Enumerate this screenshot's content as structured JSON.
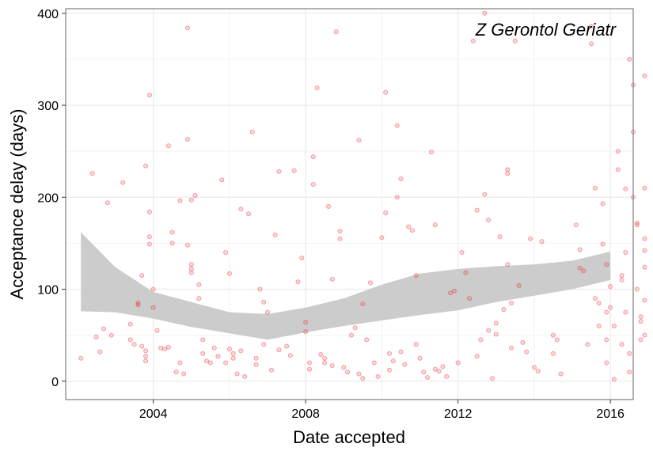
{
  "chart_data": {
    "type": "scatter",
    "annotation": "Z Gerontol Geriatr",
    "xlabel": "Date accepted",
    "ylabel": "Acceptance delay (days)",
    "xlim": [
      2001.7,
      2016.6
    ],
    "ylim": [
      -20,
      405
    ],
    "x_ticks": [
      2004,
      2008,
      2012,
      2016
    ],
    "y_ticks": [
      0,
      100,
      200,
      300,
      400
    ],
    "grid": true,
    "point_color": "#e8242a",
    "band_color": "#cccccc",
    "points": [
      [
        2002.1,
        25
      ],
      [
        2002.4,
        226
      ],
      [
        2002.5,
        48
      ],
      [
        2002.6,
        32
      ],
      [
        2002.7,
        57
      ],
      [
        2002.8,
        194
      ],
      [
        2002.9,
        50
      ],
      [
        2003.2,
        216
      ],
      [
        2003.4,
        45
      ],
      [
        2003.4,
        62
      ],
      [
        2003.5,
        40
      ],
      [
        2003.6,
        85
      ],
      [
        2003.6,
        83
      ],
      [
        2003.7,
        115
      ],
      [
        2003.7,
        38
      ],
      [
        2003.8,
        234
      ],
      [
        2003.8,
        33
      ],
      [
        2003.8,
        27
      ],
      [
        2003.8,
        22
      ],
      [
        2003.9,
        184
      ],
      [
        2003.9,
        157
      ],
      [
        2003.9,
        149
      ],
      [
        2003.9,
        311
      ],
      [
        2004.0,
        100
      ],
      [
        2004.0,
        80
      ],
      [
        2004.1,
        55
      ],
      [
        2004.2,
        36
      ],
      [
        2004.3,
        35
      ],
      [
        2004.4,
        37
      ],
      [
        2004.4,
        256
      ],
      [
        2004.5,
        162
      ],
      [
        2004.5,
        150
      ],
      [
        2004.6,
        10
      ],
      [
        2004.7,
        196
      ],
      [
        2004.7,
        20
      ],
      [
        2004.8,
        8
      ],
      [
        2004.9,
        384
      ],
      [
        2004.9,
        263
      ],
      [
        2004.9,
        148
      ],
      [
        2005.0,
        197
      ],
      [
        2005.0,
        127
      ],
      [
        2005.0,
        122
      ],
      [
        2005.0,
        118
      ],
      [
        2005.1,
        202
      ],
      [
        2005.2,
        105
      ],
      [
        2005.2,
        90
      ],
      [
        2005.3,
        45
      ],
      [
        2005.3,
        30
      ],
      [
        2005.4,
        22
      ],
      [
        2005.5,
        20
      ],
      [
        2005.6,
        36
      ],
      [
        2005.7,
        27
      ],
      [
        2005.8,
        219
      ],
      [
        2005.9,
        20
      ],
      [
        2005.9,
        140
      ],
      [
        2006.0,
        117
      ],
      [
        2006.0,
        35
      ],
      [
        2006.1,
        30
      ],
      [
        2006.1,
        25
      ],
      [
        2006.2,
        8
      ],
      [
        2006.3,
        187
      ],
      [
        2006.3,
        33
      ],
      [
        2006.4,
        5
      ],
      [
        2006.5,
        182
      ],
      [
        2006.6,
        271
      ],
      [
        2006.7,
        25
      ],
      [
        2006.7,
        18
      ],
      [
        2006.8,
        100
      ],
      [
        2006.9,
        86
      ],
      [
        2006.9,
        40
      ],
      [
        2007.0,
        75
      ],
      [
        2007.1,
        12
      ],
      [
        2007.2,
        159
      ],
      [
        2007.3,
        228
      ],
      [
        2007.3,
        34
      ],
      [
        2007.5,
        38
      ],
      [
        2007.6,
        28
      ],
      [
        2007.7,
        229
      ],
      [
        2007.8,
        108
      ],
      [
        2007.9,
        134
      ],
      [
        2008.0,
        64
      ],
      [
        2008.0,
        54
      ],
      [
        2008.1,
        20
      ],
      [
        2008.1,
        13
      ],
      [
        2008.2,
        244
      ],
      [
        2008.2,
        214
      ],
      [
        2008.3,
        319
      ],
      [
        2008.4,
        29
      ],
      [
        2008.5,
        20
      ],
      [
        2008.5,
        25
      ],
      [
        2008.6,
        190
      ],
      [
        2008.7,
        111
      ],
      [
        2008.7,
        17
      ],
      [
        2008.8,
        380
      ],
      [
        2008.9,
        163
      ],
      [
        2008.9,
        155
      ],
      [
        2009.0,
        15
      ],
      [
        2009.1,
        10
      ],
      [
        2009.2,
        50
      ],
      [
        2009.3,
        58
      ],
      [
        2009.4,
        262
      ],
      [
        2009.4,
        8
      ],
      [
        2009.5,
        3
      ],
      [
        2009.5,
        84
      ],
      [
        2009.6,
        45
      ],
      [
        2009.7,
        107
      ],
      [
        2009.8,
        20
      ],
      [
        2009.9,
        5
      ],
      [
        2010.0,
        156
      ],
      [
        2010.1,
        314
      ],
      [
        2010.1,
        183
      ],
      [
        2010.2,
        12
      ],
      [
        2010.2,
        30
      ],
      [
        2010.3,
        22
      ],
      [
        2010.4,
        200
      ],
      [
        2010.4,
        278
      ],
      [
        2010.5,
        220
      ],
      [
        2010.5,
        32
      ],
      [
        2010.6,
        18
      ],
      [
        2010.7,
        168
      ],
      [
        2010.8,
        164
      ],
      [
        2010.9,
        115
      ],
      [
        2010.9,
        40
      ],
      [
        2011.0,
        25
      ],
      [
        2011.1,
        10
      ],
      [
        2011.2,
        4
      ],
      [
        2011.3,
        249
      ],
      [
        2011.4,
        170
      ],
      [
        2011.4,
        13
      ],
      [
        2011.5,
        11
      ],
      [
        2011.6,
        16
      ],
      [
        2011.7,
        5
      ],
      [
        2011.8,
        96
      ],
      [
        2011.9,
        98
      ],
      [
        2012.0,
        20
      ],
      [
        2012.1,
        140
      ],
      [
        2012.2,
        118
      ],
      [
        2012.3,
        90
      ],
      [
        2012.4,
        370
      ],
      [
        2012.5,
        186
      ],
      [
        2012.5,
        27
      ],
      [
        2012.6,
        45
      ],
      [
        2012.7,
        400
      ],
      [
        2012.7,
        203
      ],
      [
        2012.8,
        175
      ],
      [
        2012.8,
        55
      ],
      [
        2012.9,
        3
      ],
      [
        2013.0,
        63
      ],
      [
        2013.0,
        51
      ],
      [
        2013.1,
        157
      ],
      [
        2013.2,
        78
      ],
      [
        2013.3,
        230
      ],
      [
        2013.3,
        226
      ],
      [
        2013.3,
        127
      ],
      [
        2013.4,
        36
      ],
      [
        2013.4,
        85
      ],
      [
        2013.5,
        370
      ],
      [
        2013.6,
        104
      ],
      [
        2013.7,
        42
      ],
      [
        2013.8,
        32
      ],
      [
        2013.9,
        155
      ],
      [
        2014.0,
        15
      ],
      [
        2014.1,
        11
      ],
      [
        2014.2,
        152
      ],
      [
        2014.5,
        30
      ],
      [
        2014.5,
        50
      ],
      [
        2014.6,
        45
      ],
      [
        2014.7,
        8
      ],
      [
        2015.1,
        170
      ],
      [
        2015.2,
        143
      ],
      [
        2015.2,
        123
      ],
      [
        2015.3,
        120
      ],
      [
        2015.4,
        40
      ],
      [
        2015.5,
        386
      ],
      [
        2015.5,
        367
      ],
      [
        2015.6,
        210
      ],
      [
        2015.6,
        90
      ],
      [
        2015.7,
        85
      ],
      [
        2015.7,
        60
      ],
      [
        2015.8,
        193
      ],
      [
        2015.8,
        149
      ],
      [
        2015.9,
        127
      ],
      [
        2015.9,
        75
      ],
      [
        2015.9,
        45
      ],
      [
        2015.9,
        20
      ],
      [
        2016.0,
        103
      ],
      [
        2016.0,
        80
      ],
      [
        2016.1,
        2
      ],
      [
        2016.1,
        60
      ],
      [
        2016.2,
        250
      ],
      [
        2016.2,
        230
      ],
      [
        2016.3,
        115
      ],
      [
        2016.3,
        110
      ],
      [
        2016.3,
        40
      ],
      [
        2016.4,
        209
      ],
      [
        2016.4,
        140
      ],
      [
        2016.4,
        75
      ],
      [
        2016.5,
        30
      ],
      [
        2016.5,
        10
      ],
      [
        2016.5,
        350
      ],
      [
        2016.6,
        322
      ],
      [
        2016.6,
        271
      ],
      [
        2016.6,
        200
      ],
      [
        2016.7,
        170
      ],
      [
        2016.7,
        172
      ],
      [
        2016.7,
        100
      ],
      [
        2016.8,
        70
      ],
      [
        2016.8,
        45
      ],
      [
        2016.8,
        65
      ],
      [
        2016.9,
        332
      ],
      [
        2016.9,
        210
      ],
      [
        2016.9,
        155
      ],
      [
        2016.9,
        50
      ],
      [
        2016.9,
        142
      ],
      [
        2016.9,
        124
      ],
      [
        2016.9,
        88
      ]
    ],
    "smooth_band": {
      "x": [
        2002.1,
        2003.0,
        2004.0,
        2005.0,
        2006.0,
        2007.0,
        2008.0,
        2009.0,
        2010.0,
        2011.0,
        2012.0,
        2013.0,
        2014.0,
        2015.0,
        2016.0
      ],
      "upper": [
        162,
        124,
        97,
        86,
        75,
        73,
        80,
        90,
        105,
        117,
        122,
        125,
        127,
        131,
        141
      ],
      "lower": [
        76,
        75,
        68,
        59,
        52,
        45,
        53,
        60,
        66,
        72,
        77,
        86,
        93,
        100,
        110
      ]
    }
  }
}
